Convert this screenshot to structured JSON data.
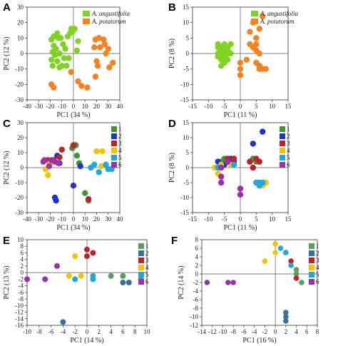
{
  "chart_data": [
    {
      "panel": "A",
      "type": "scatter",
      "xlabel": "PC1 (34 %)",
      "ylabel": "PC2 (12 %)",
      "xlim": [
        -40,
        40
      ],
      "ylim": [
        -30,
        30
      ],
      "xticks": [
        -40,
        -30,
        -20,
        -10,
        0,
        10,
        20,
        30,
        40
      ],
      "yticks": [
        -30,
        -20,
        -10,
        0,
        10,
        20,
        30
      ],
      "legend": "top-right",
      "series": [
        {
          "name": "A. angustifolia",
          "color": "#7ed321",
          "points": [
            [
              -19,
              9
            ],
            [
              -17,
              11
            ],
            [
              -14,
              13
            ],
            [
              -13,
              10
            ],
            [
              -11,
              10
            ],
            [
              -9,
              6
            ],
            [
              -5,
              11
            ],
            [
              -3,
              13
            ],
            [
              -2,
              16
            ],
            [
              -1,
              14
            ],
            [
              1,
              16
            ],
            [
              4,
              8
            ],
            [
              -7,
              3
            ],
            [
              3,
              2
            ],
            [
              -17,
              5
            ],
            [
              -16,
              -1
            ],
            [
              -15,
              3
            ],
            [
              -12,
              0
            ],
            [
              -14,
              -5
            ],
            [
              -12,
              -9
            ],
            [
              -10,
              -8
            ],
            [
              -8,
              -3
            ],
            [
              -19,
              -4
            ],
            [
              -18,
              -8
            ],
            [
              -6,
              -8
            ],
            [
              -4,
              -3
            ],
            [
              -18,
              1
            ]
          ]
        },
        {
          "name": "A. potatorum",
          "color": "#f5821f",
          "points": [
            [
              -19,
              -20
            ],
            [
              -17,
              -22
            ],
            [
              -2,
              -12
            ],
            [
              4,
              -18
            ],
            [
              7,
              -21
            ],
            [
              12,
              -22
            ],
            [
              19,
              9
            ],
            [
              22,
              10
            ],
            [
              26,
              9
            ],
            [
              27,
              6
            ],
            [
              18,
              4
            ],
            [
              23,
              4
            ],
            [
              30,
              3
            ],
            [
              28,
              0
            ],
            [
              20,
              -5
            ],
            [
              21,
              -8
            ],
            [
              19,
              -15
            ],
            [
              31,
              -9
            ],
            [
              34,
              -6
            ]
          ]
        }
      ]
    },
    {
      "panel": "B",
      "type": "scatter",
      "xlabel": "PC1 (11 %)",
      "ylabel": "PC2 (8 %)",
      "xlim": [
        -15,
        15
      ],
      "ylim": [
        -15,
        15
      ],
      "xticks": [
        -15,
        -10,
        -5,
        0,
        5,
        10,
        15
      ],
      "yticks": [
        -15,
        -10,
        -5,
        0,
        5,
        10,
        15
      ],
      "legend": "top-right",
      "series": [
        {
          "name": "A. angustifolia",
          "color": "#7ed321",
          "points": [
            [
              -7,
              3
            ],
            [
              -6,
              2
            ],
            [
              -5,
              3
            ],
            [
              -4,
              2
            ],
            [
              -6,
              1
            ],
            [
              -5,
              1
            ],
            [
              -4,
              1
            ],
            [
              -7,
              0
            ],
            [
              -6,
              0
            ],
            [
              -5,
              0
            ],
            [
              -4,
              0
            ],
            [
              -3,
              0
            ],
            [
              -7,
              -1
            ],
            [
              -6,
              -2
            ],
            [
              -5,
              -1
            ],
            [
              -4,
              -2
            ],
            [
              -6,
              -4
            ],
            [
              -5,
              -3
            ],
            [
              -7,
              2
            ],
            [
              -3,
              3
            ]
          ]
        },
        {
          "name": "A. potatorum",
          "color": "#f5821f",
          "points": [
            [
              4,
              10
            ],
            [
              7,
              12
            ],
            [
              6,
              8
            ],
            [
              3,
              7
            ],
            [
              5,
              5
            ],
            [
              5,
              3
            ],
            [
              4,
              2
            ],
            [
              3,
              3
            ],
            [
              5,
              1
            ],
            [
              6,
              0
            ],
            [
              0,
              -3
            ],
            [
              0,
              -5
            ],
            [
              0,
              -7
            ],
            [
              5,
              -3
            ],
            [
              6,
              -5
            ],
            [
              7,
              -5
            ],
            [
              8,
              -5
            ],
            [
              6,
              -4
            ],
            [
              2,
              -2
            ]
          ]
        }
      ]
    },
    {
      "panel": "C",
      "type": "scatter",
      "xlabel": "PC1 (34 %)",
      "ylabel": "PC2 (12 %)",
      "xlim": [
        -40,
        40
      ],
      "ylim": [
        -30,
        30
      ],
      "xticks": [
        -40,
        -30,
        -20,
        -10,
        0,
        10,
        20,
        30,
        40
      ],
      "yticks": [
        -30,
        -20,
        -10,
        0,
        10,
        20,
        30
      ],
      "legend": "right",
      "series": [
        {
          "name": "1",
          "color": "#3a9a2f",
          "points": [
            [
              -1,
              13
            ],
            [
              2,
              15
            ],
            [
              10,
              -17
            ],
            [
              13,
              -22
            ],
            [
              5,
              3
            ],
            [
              3,
              8
            ]
          ]
        },
        {
          "name": "2",
          "color": "#2233cc",
          "points": [
            [
              -16,
              -20
            ],
            [
              -15,
              -22
            ],
            [
              0,
              -12
            ],
            [
              -12,
              3
            ],
            [
              -14,
              8
            ],
            [
              6,
              1
            ]
          ]
        },
        {
          "name": "3",
          "color": "#c0202a",
          "points": [
            [
              -10,
              12
            ],
            [
              -22,
              5
            ],
            [
              -17,
              5
            ],
            [
              -12,
              7
            ],
            [
              13,
              -21
            ],
            [
              0,
              15
            ]
          ]
        },
        {
          "name": "4",
          "color": "#f2c500",
          "points": [
            [
              -24,
              -1
            ],
            [
              -22,
              -5
            ],
            [
              20,
              11
            ],
            [
              25,
              11
            ],
            [
              24,
              1
            ],
            [
              -20,
              3
            ]
          ]
        },
        {
          "name": "5",
          "color": "#1fa8e0",
          "points": [
            [
              22,
              -3
            ],
            [
              30,
              -1
            ],
            [
              33,
              -1
            ],
            [
              18,
              2
            ],
            [
              28,
              2
            ],
            [
              15,
              0
            ]
          ]
        },
        {
          "name": "6",
          "color": "#9a2fb0",
          "points": [
            [
              -25,
              5
            ],
            [
              -21,
              1
            ],
            [
              -19,
              5
            ],
            [
              -16,
              4
            ],
            [
              -13,
              3
            ],
            [
              -26,
              4
            ]
          ]
        }
      ]
    },
    {
      "panel": "D",
      "type": "scatter",
      "xlabel": "PC1 (11 %)",
      "ylabel": "PC2 (8 %)",
      "xlim": [
        -15,
        15
      ],
      "ylim": [
        -15,
        15
      ],
      "xticks": [
        -15,
        -10,
        -5,
        0,
        5,
        10,
        15
      ],
      "yticks": [
        -15,
        -10,
        -5,
        0,
        5,
        10,
        15
      ],
      "legend": "right",
      "series": [
        {
          "name": "1",
          "color": "#3a9a2f",
          "points": [
            [
              -5,
              3
            ],
            [
              -6,
              2
            ],
            [
              -4,
              2
            ],
            [
              4,
              3
            ],
            [
              5,
              2
            ],
            [
              3,
              2
            ]
          ]
        },
        {
          "name": "2",
          "color": "#2233cc",
          "points": [
            [
              -7,
              2
            ],
            [
              -2,
              2
            ],
            [
              -3,
              3
            ],
            [
              4,
              8
            ],
            [
              7,
              12
            ],
            [
              -5,
              1
            ]
          ]
        },
        {
          "name": "3",
          "color": "#c0202a",
          "points": [
            [
              -4,
              3
            ],
            [
              -2,
              3
            ],
            [
              5,
              3
            ],
            [
              6,
              2
            ],
            [
              4,
              0
            ],
            [
              3,
              2
            ]
          ]
        },
        {
          "name": "4",
          "color": "#f2c500",
          "points": [
            [
              -8,
              0
            ],
            [
              -7,
              -2
            ],
            [
              7,
              -6
            ],
            [
              8,
              -5
            ],
            [
              -6,
              1
            ],
            [
              -3,
              1
            ]
          ]
        },
        {
          "name": "5",
          "color": "#1fa8e0",
          "points": [
            [
              -7,
              0
            ],
            [
              5,
              -5
            ],
            [
              6,
              -5
            ],
            [
              7,
              -5
            ],
            [
              -2,
              1
            ],
            [
              6,
              -6
            ]
          ]
        },
        {
          "name": "6",
          "color": "#9a2fb0",
          "points": [
            [
              -6,
              -3
            ],
            [
              -6,
              -5
            ],
            [
              0,
              -7
            ],
            [
              0,
              -9
            ],
            [
              -4,
              2
            ],
            [
              -6,
              0
            ]
          ]
        }
      ]
    },
    {
      "panel": "E",
      "type": "scatter",
      "xlabel": "PC1 (14 %)",
      "ylabel": "PC2 (13 %)",
      "xlim": [
        -10,
        10
      ],
      "ylim": [
        -16,
        10
      ],
      "xticks": [
        -10,
        -8,
        -6,
        -4,
        -2,
        0,
        2,
        4,
        6,
        8,
        10
      ],
      "yticks": [
        -16,
        -14,
        -12,
        -10,
        -8,
        -6,
        -4,
        -2,
        0,
        2,
        4,
        6,
        8,
        10
      ],
      "legend": "right",
      "series": [
        {
          "name": "1",
          "color": "#5aa05a",
          "points": [
            [
              4,
              -1
            ],
            [
              6,
              -1
            ],
            [
              9,
              -2
            ]
          ]
        },
        {
          "name": "2",
          "color": "#3a6f9a",
          "points": [
            [
              -4,
              -15
            ],
            [
              6,
              -3
            ],
            [
              7,
              -3
            ]
          ]
        },
        {
          "name": "3",
          "color": "#c0202a",
          "points": [
            [
              0,
              7
            ],
            [
              0,
              5
            ],
            [
              1,
              6
            ]
          ]
        },
        {
          "name": "4",
          "color": "#f2c500",
          "points": [
            [
              -2,
              5
            ],
            [
              -3,
              -1
            ],
            [
              -1,
              -1
            ]
          ]
        },
        {
          "name": "5",
          "color": "#1fa8e0",
          "points": [
            [
              1,
              -1
            ],
            [
              1,
              -2
            ],
            [
              -2,
              -2
            ]
          ]
        },
        {
          "name": "6",
          "color": "#9a2fb0",
          "points": [
            [
              -10,
              -2
            ],
            [
              -7,
              -2
            ],
            [
              -5,
              2
            ]
          ]
        }
      ]
    },
    {
      "panel": "F",
      "type": "scatter",
      "xlabel": "PC1 (16 %)",
      "ylabel": "PC2 (14 %)",
      "xlim": [
        -14,
        8
      ],
      "ylim": [
        -12,
        8
      ],
      "xticks": [
        -14,
        -12,
        -10,
        -8,
        -6,
        -4,
        -2,
        0,
        2,
        4,
        6,
        8
      ],
      "yticks": [
        -12,
        -10,
        -8,
        -6,
        -4,
        -2,
        0,
        2,
        4,
        6,
        8
      ],
      "legend": "right",
      "series": [
        {
          "name": "1",
          "color": "#5aa05a",
          "points": [
            [
              4,
              0
            ],
            [
              4,
              1
            ],
            [
              5,
              -2
            ]
          ]
        },
        {
          "name": "2",
          "color": "#3a6f9a",
          "points": [
            [
              2,
              -9
            ],
            [
              2,
              -10
            ],
            [
              2,
              -11
            ]
          ]
        },
        {
          "name": "3",
          "color": "#c0202a",
          "points": [
            [
              2,
              5
            ],
            [
              3,
              3
            ],
            [
              4,
              -1
            ]
          ]
        },
        {
          "name": "4",
          "color": "#f2c500",
          "points": [
            [
              0,
              7
            ],
            [
              -2,
              3
            ],
            [
              0,
              5
            ]
          ]
        },
        {
          "name": "5",
          "color": "#1fa8e0",
          "points": [
            [
              1,
              6
            ],
            [
              2,
              5
            ],
            [
              3,
              2
            ]
          ]
        },
        {
          "name": "6",
          "color": "#9a2fb0",
          "points": [
            [
              -13,
              -2
            ],
            [
              -9,
              -2
            ],
            [
              -8,
              -2
            ]
          ]
        }
      ]
    }
  ]
}
